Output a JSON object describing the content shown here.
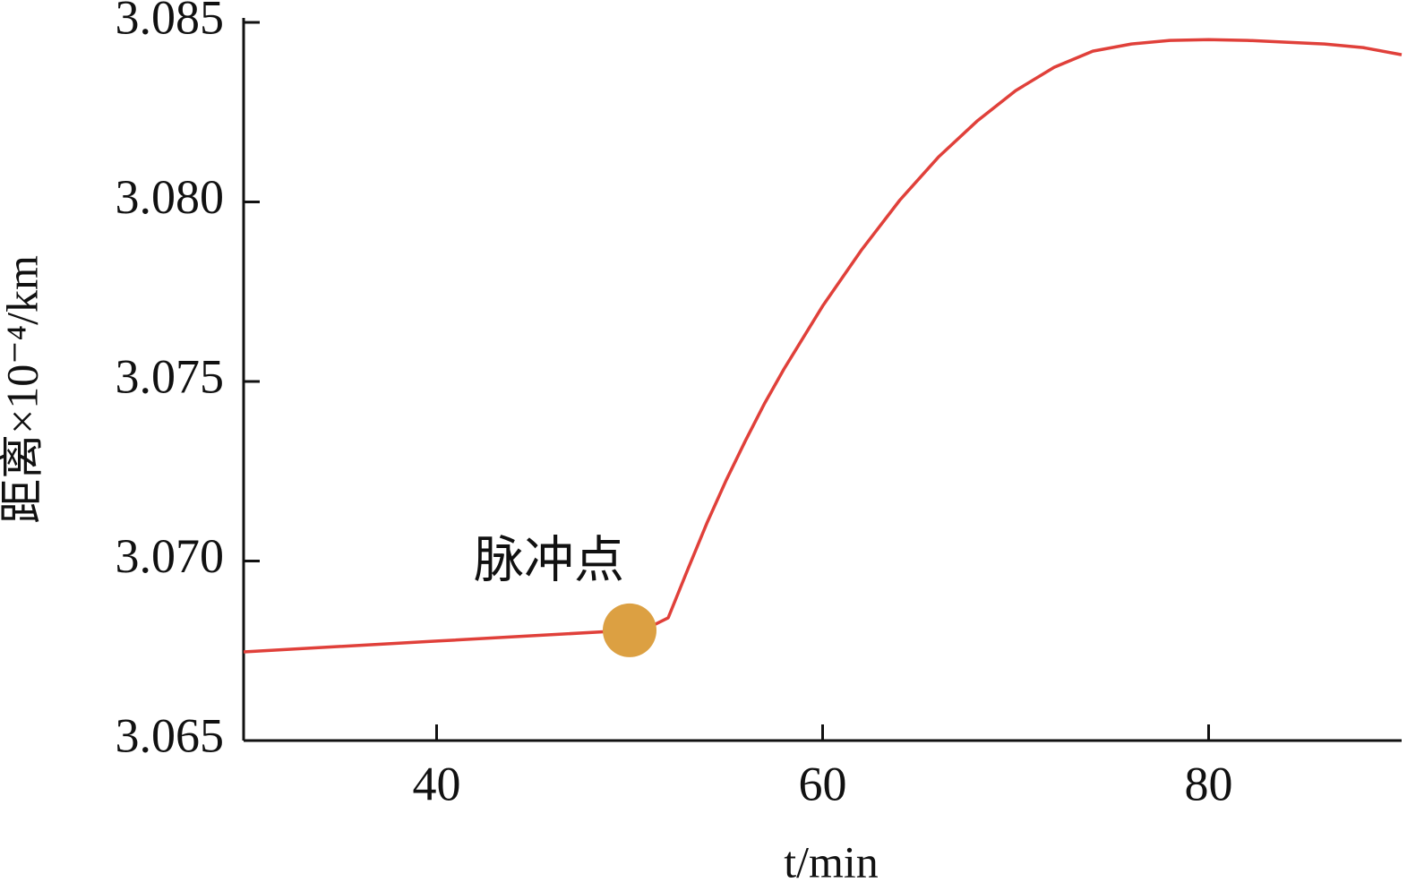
{
  "chart_data": {
    "type": "line",
    "xlabel": "t/min",
    "ylabel": "距离×10⁻⁴/km",
    "x": [
      30,
      35,
      40,
      45,
      50,
      51,
      52,
      53,
      54,
      55,
      56,
      57,
      58,
      60,
      62,
      64,
      66,
      68,
      70,
      72,
      74,
      76,
      78,
      80,
      82,
      84,
      86,
      88,
      90
    ],
    "values": [
      3.06747,
      3.06762,
      3.06777,
      3.06792,
      3.06807,
      3.06815,
      3.06842,
      3.06975,
      3.07105,
      3.07225,
      3.07335,
      3.0744,
      3.07535,
      3.0771,
      3.07865,
      3.08005,
      3.08125,
      3.08225,
      3.0831,
      3.08375,
      3.0842,
      3.0844,
      3.0845,
      3.08452,
      3.0845,
      3.08445,
      3.0844,
      3.0843,
      3.0841
    ],
    "color": "#e0403a",
    "marker": {
      "x": 50,
      "y": 3.06807,
      "color": "#dca042",
      "label": "脉冲点"
    },
    "xlim": [
      30,
      90
    ],
    "xticks": [
      40,
      60,
      80
    ],
    "ylim": [
      3.065,
      3.085
    ],
    "yticks": [
      3.065,
      {
        "value": 3.07,
        "label": "3.070"
      },
      3.075,
      {
        "value": 3.08,
        "label": "3.080"
      },
      3.085
    ]
  }
}
